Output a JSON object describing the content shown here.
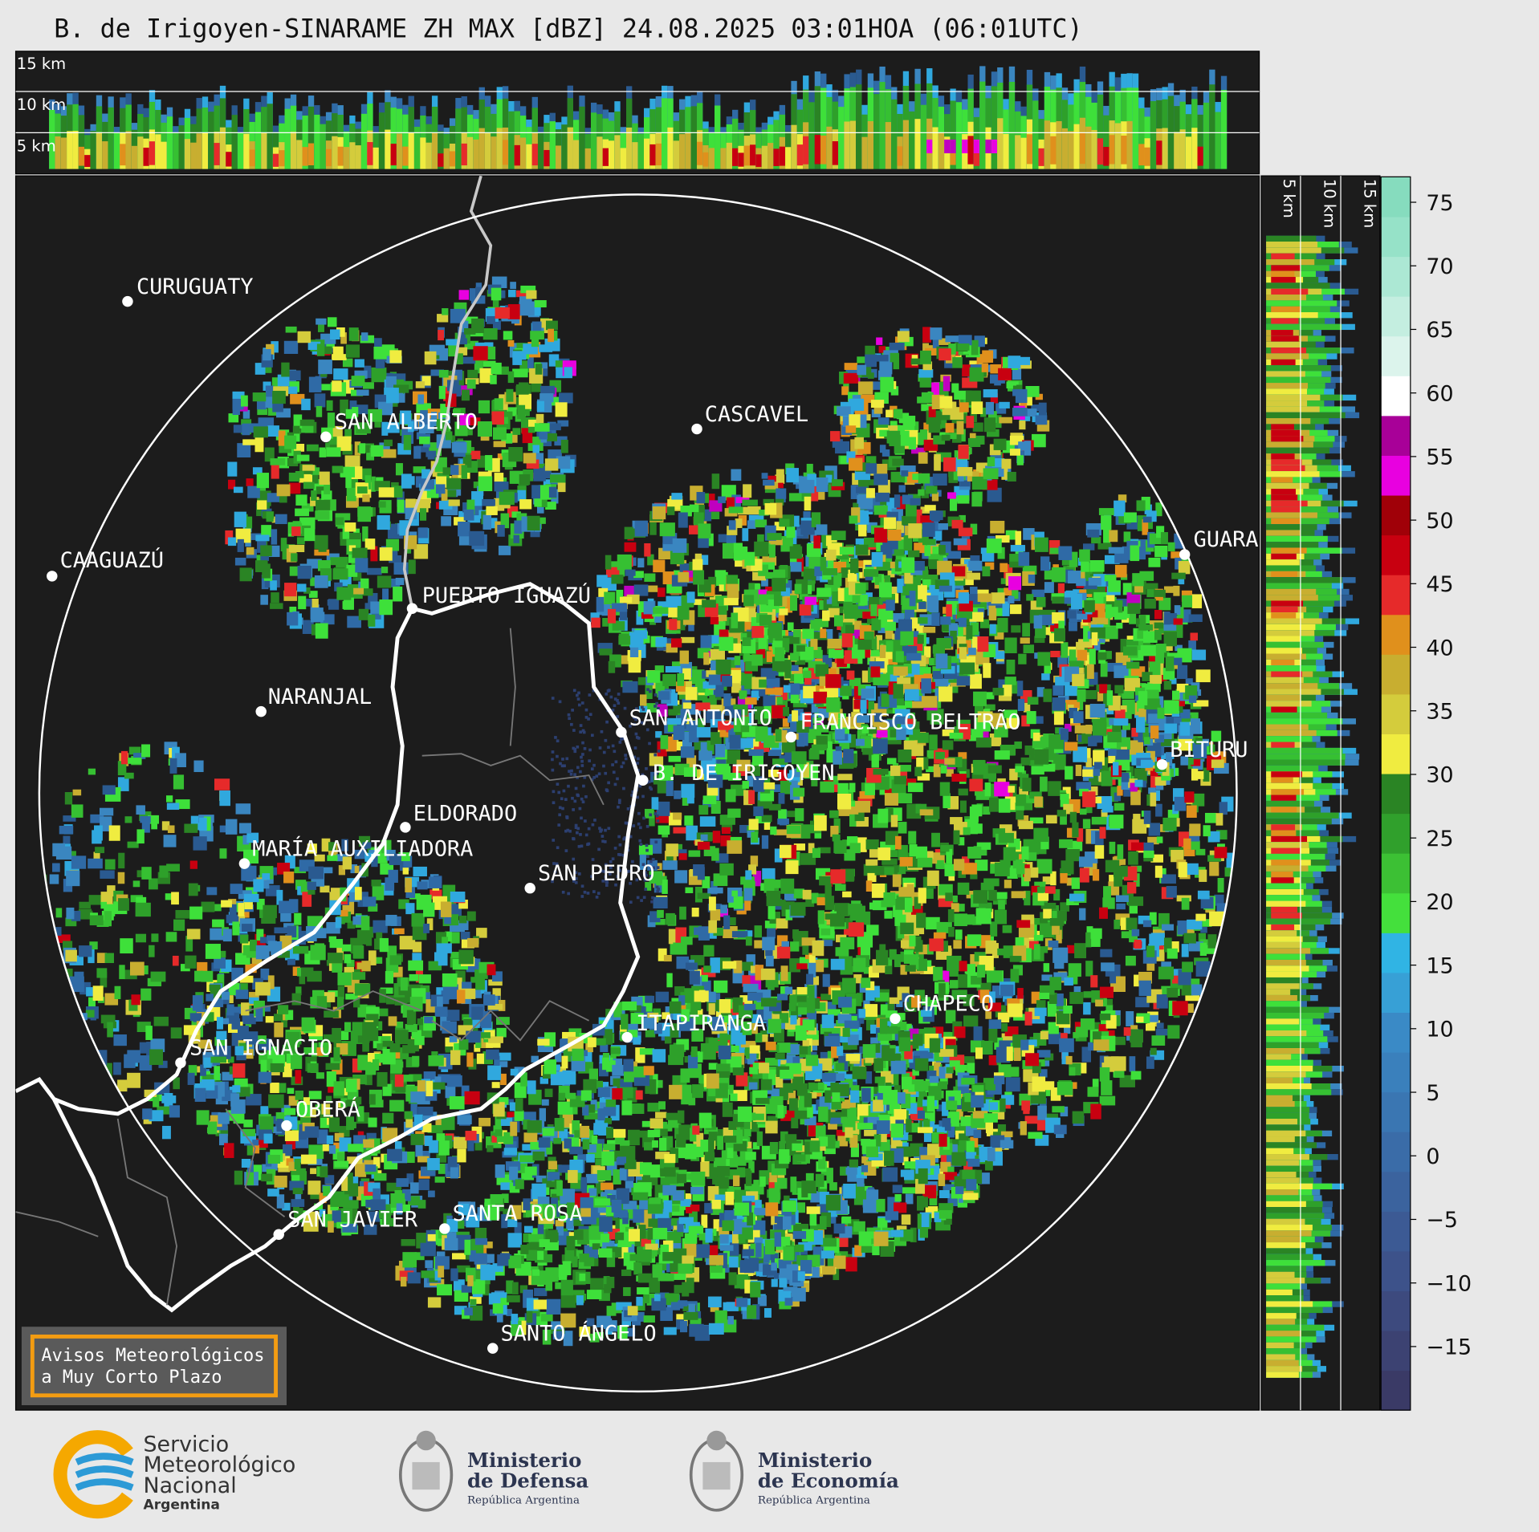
{
  "title": "B. de Irigoyen-SINARAME ZH MAX [dBZ] 24.08.2025 03:01HOA (06:01UTC)",
  "vertical_section_top": {
    "height_labels": [
      "15 km",
      "10 km",
      "5 km"
    ]
  },
  "vertical_section_side": {
    "height_labels": [
      "5 km",
      "10 km",
      "15 km"
    ]
  },
  "colorbar": {
    "range": [
      -20,
      77
    ],
    "ticks": [
      {
        "value": -15,
        "label": "−15"
      },
      {
        "value": -10,
        "label": "−10"
      },
      {
        "value": -5,
        "label": "−5"
      },
      0,
      5,
      10,
      15,
      20,
      25,
      30,
      35,
      40,
      45,
      50,
      55,
      60,
      65,
      70,
      75
    ],
    "colors": [
      "#3a3a66",
      "#3c4272",
      "#3d4a7e",
      "#3d528a",
      "#3c5a94",
      "#3b639e",
      "#3a6ca8",
      "#3a76b2",
      "#3a80bc",
      "#3a8ac6",
      "#37a0d6",
      "#30b4e4",
      "#44e03c",
      "#3cc034",
      "#30a02c",
      "#2a8424",
      "#f0ec40",
      "#d4cc3c",
      "#c8ae30",
      "#e0901c",
      "#e62a2a",
      "#c80010",
      "#a00008",
      "#e800e0",
      "#a80098",
      "#ffffff",
      "#dcf4ec",
      "#c4eee0",
      "#ace8d4",
      "#96e2c8",
      "#86dcbe"
    ]
  },
  "cities": [
    "CURUGUATY",
    "SAN ALBERTO",
    "CAAGUAZÚ",
    "PUERTO IGUAZÚ",
    "NARANJAL",
    "SAN ANTONIO",
    "FRANCISCO BELTRÃO",
    "B. DE IRIGOYEN",
    "CASCAVEL",
    "GUARA",
    "BITURU",
    "ELDORADO",
    "MARÍA AUXILIADORA",
    "SAN PEDRO",
    "ITAPIRANGA",
    "CHAPECO",
    "SAN IGNACIO",
    "OBERÁ",
    "SAN JAVIER",
    "SANTA ROSA",
    "SANTO ÁNGELO"
  ],
  "warning_box": {
    "lines": [
      "Avisos Meteorológicos",
      "a Muy Corto Plazo"
    ]
  },
  "footer": {
    "smn": [
      "Servicio",
      "Meteorológico",
      "Nacional",
      "Argentina"
    ],
    "defensa": {
      "title": [
        "Ministerio",
        "de Defensa"
      ],
      "subtitle": "República Argentina"
    },
    "economia": {
      "title": [
        "Ministerio",
        "de Economía"
      ],
      "subtitle": "República Argentina"
    }
  }
}
